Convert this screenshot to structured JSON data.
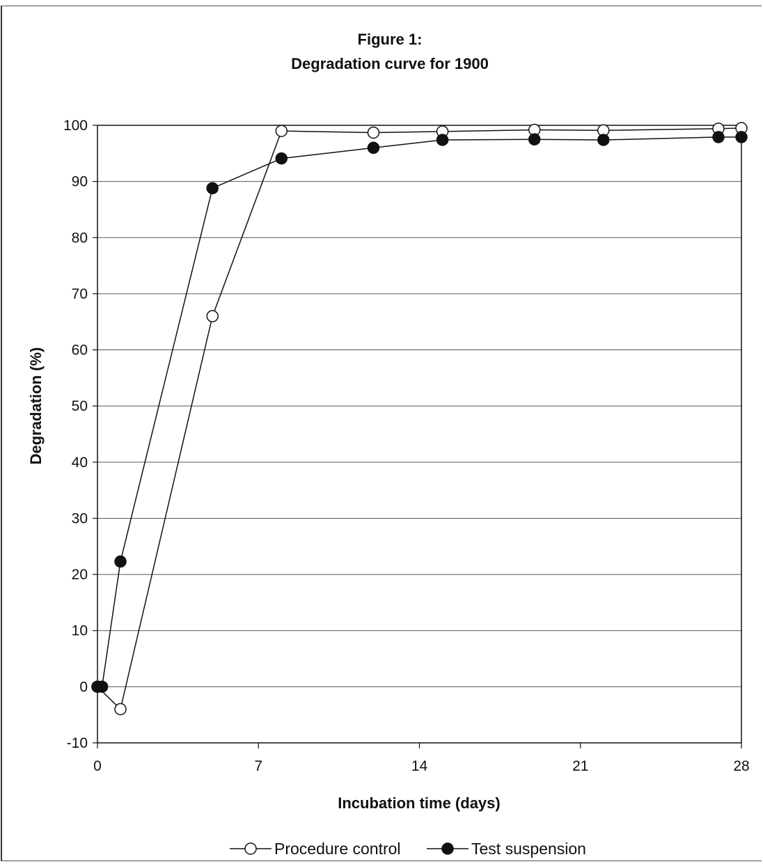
{
  "chart_data": {
    "type": "line",
    "title": "Figure 1:",
    "subtitle": "Degradation curve for 1900",
    "xlabel": "Incubation time (days)",
    "ylabel": "Degradation (%)",
    "xlim": [
      0,
      28
    ],
    "ylim": [
      -10,
      100
    ],
    "xticks": [
      0,
      7,
      14,
      21,
      28
    ],
    "yticks": [
      -10,
      0,
      10,
      20,
      30,
      40,
      50,
      60,
      70,
      80,
      90,
      100
    ],
    "grid": "horizontal",
    "legend_position": "bottom",
    "series": [
      {
        "name": "Procedure control",
        "marker": "open-circle",
        "color": "#111111",
        "points": [
          {
            "x": 0,
            "y": 0
          },
          {
            "x": 1,
            "y": -4
          },
          {
            "x": 5,
            "y": 66
          },
          {
            "x": 8,
            "y": 99
          },
          {
            "x": 12,
            "y": 98.7
          },
          {
            "x": 15,
            "y": 98.9
          },
          {
            "x": 19,
            "y": 99.2
          },
          {
            "x": 22,
            "y": 99.1
          },
          {
            "x": 27,
            "y": 99.4
          },
          {
            "x": 28,
            "y": 99.5
          }
        ]
      },
      {
        "name": "Test suspension",
        "marker": "filled-circle",
        "color": "#111111",
        "points": [
          {
            "x": 0,
            "y": 0
          },
          {
            "x": 0.2,
            "y": 0
          },
          {
            "x": 1,
            "y": 22.3
          },
          {
            "x": 5,
            "y": 88.8
          },
          {
            "x": 8,
            "y": 94.1
          },
          {
            "x": 12,
            "y": 96
          },
          {
            "x": 15,
            "y": 97.4
          },
          {
            "x": 19,
            "y": 97.5
          },
          {
            "x": 22,
            "y": 97.4
          },
          {
            "x": 27,
            "y": 97.9
          },
          {
            "x": 28,
            "y": 97.9
          }
        ]
      }
    ]
  }
}
